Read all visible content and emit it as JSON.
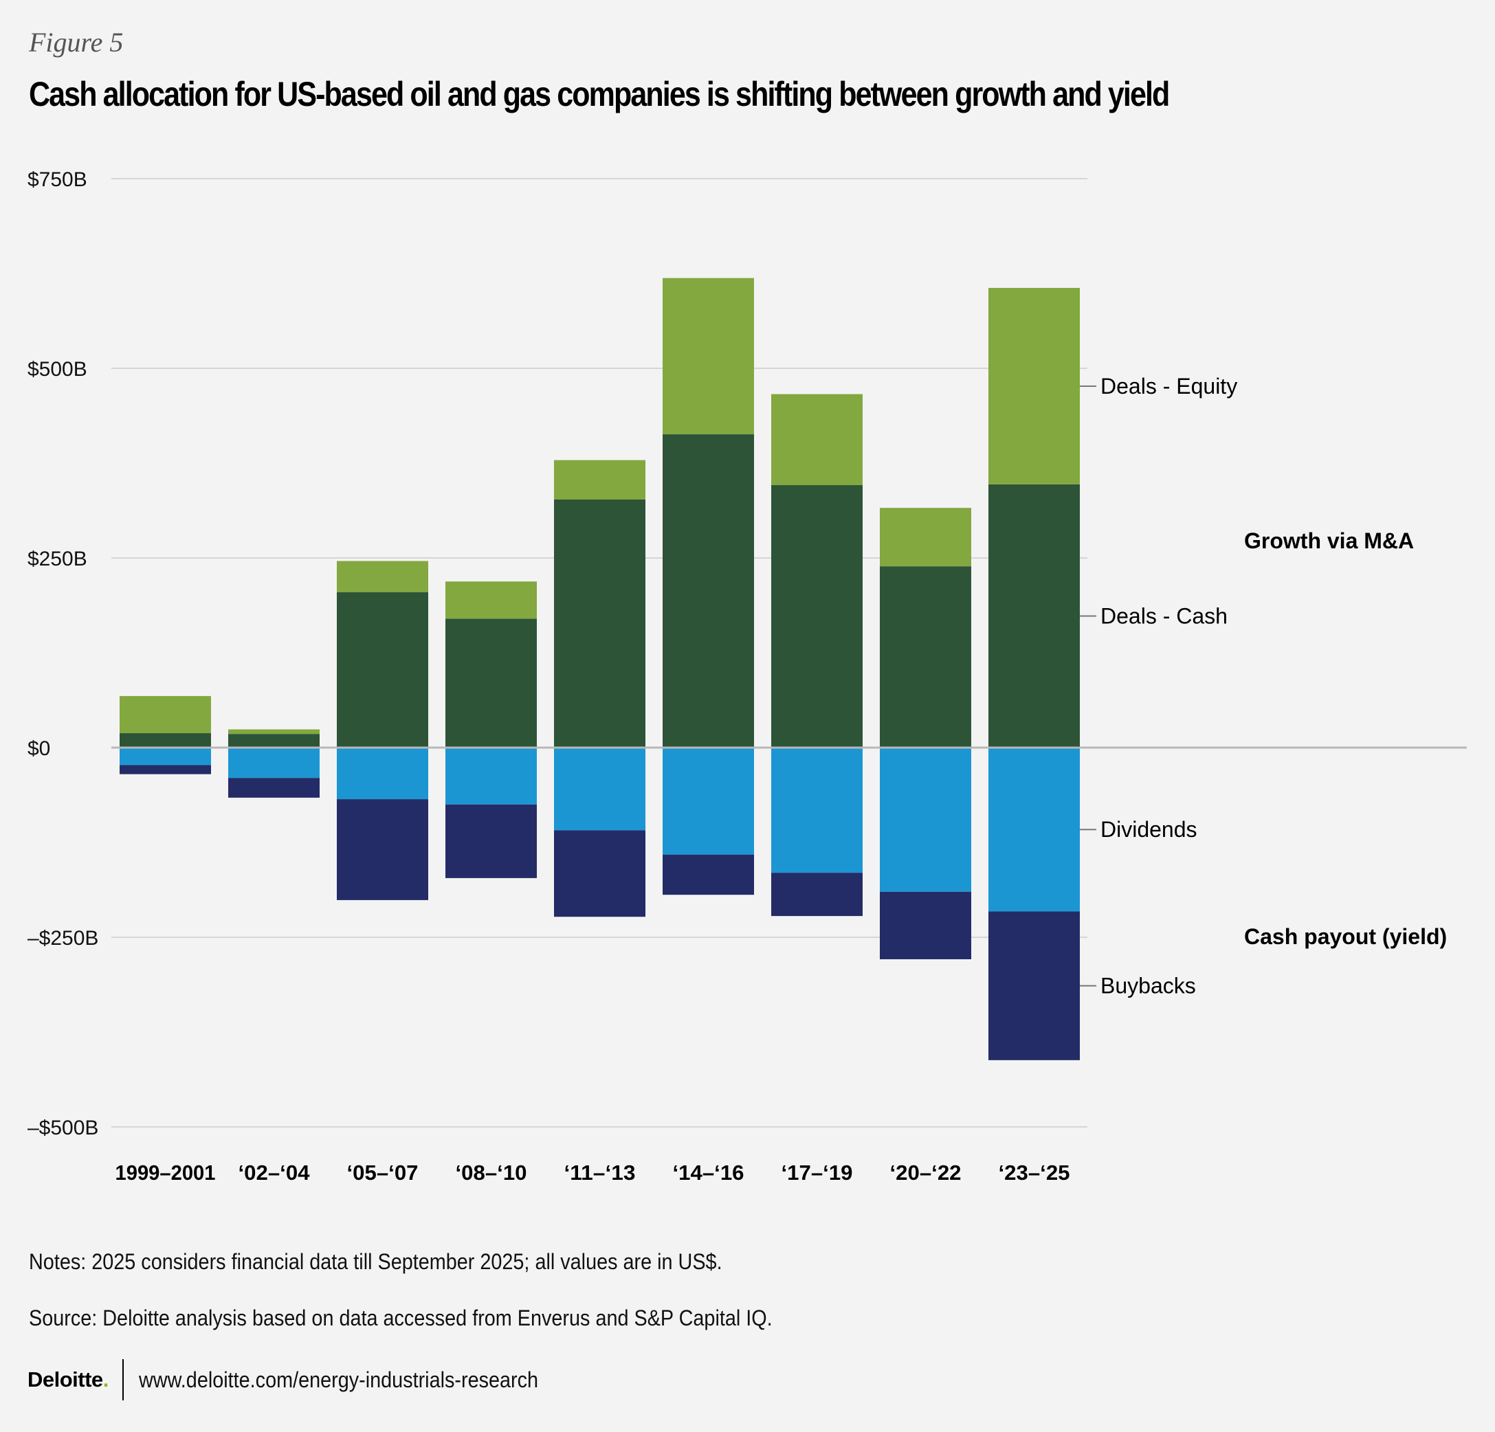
{
  "figure_label": "Figure 5",
  "title": "Cash allocation for US-based oil and gas companies is shifting between growth and yield",
  "notes": "Notes: 2025 considers financial data till September 2025; all values are in US$.",
  "source": "Source: Deloitte analysis based on data accessed from Enverus and S&P Capital IQ.",
  "footer": {
    "logo_text": "Deloitte",
    "logo_dot": ".",
    "url": "www.deloitte.com/energy-industrials-research"
  },
  "colors": {
    "deals_equity": "#83a840",
    "deals_cash": "#2d5437",
    "dividends": "#1c96d3",
    "buybacks": "#232c66",
    "background": "#f3f3f3",
    "logo_dot": "#86bc25"
  },
  "chart_data": {
    "type": "bar",
    "stacked": true,
    "title": "Cash allocation for US-based oil and gas companies is shifting between growth and yield",
    "xlabel": "",
    "ylabel": "",
    "units": "US$ billions",
    "ylim": [
      -500,
      750
    ],
    "yticks": [
      750,
      500,
      250,
      0,
      -250,
      -500
    ],
    "ytick_labels": [
      "$750B",
      "$500B",
      "$250B",
      "$0",
      "–$250B",
      "–$500B"
    ],
    "grid": true,
    "legend_placement": "right",
    "categories": [
      "1999–2001",
      "‘02–‘04",
      "‘05–‘07",
      "‘08–‘10",
      "‘11–‘13",
      "‘14–‘16",
      "‘17–‘19",
      "‘20–‘22",
      "‘23–‘25"
    ],
    "series": [
      {
        "name": "Deals - Cash",
        "group": "Growth via M&A",
        "color": "#2d5437",
        "values": [
          19,
          18,
          205,
          170,
          327,
          413,
          346,
          239,
          347
        ]
      },
      {
        "name": "Deals - Equity",
        "group": "Growth via M&A",
        "color": "#83a840",
        "values": [
          49,
          6,
          41,
          49,
          52,
          206,
          120,
          77,
          259
        ]
      },
      {
        "name": "Dividends",
        "group": "Cash payout (yield)",
        "color": "#1c96d3",
        "values": [
          -23,
          -40,
          -68,
          -75,
          -109,
          -141,
          -165,
          -190,
          -216
        ]
      },
      {
        "name": "Buybacks",
        "group": "Cash payout (yield)",
        "color": "#232c66",
        "values": [
          -12,
          -26,
          -133,
          -97,
          -114,
          -53,
          -57,
          -89,
          -196
        ]
      }
    ],
    "legend": [
      "Deals - Equity",
      "Deals - Cash",
      "Dividends",
      "Buybacks"
    ],
    "group_labels": [
      "Growth via M&A",
      "Cash payout (yield)"
    ]
  }
}
